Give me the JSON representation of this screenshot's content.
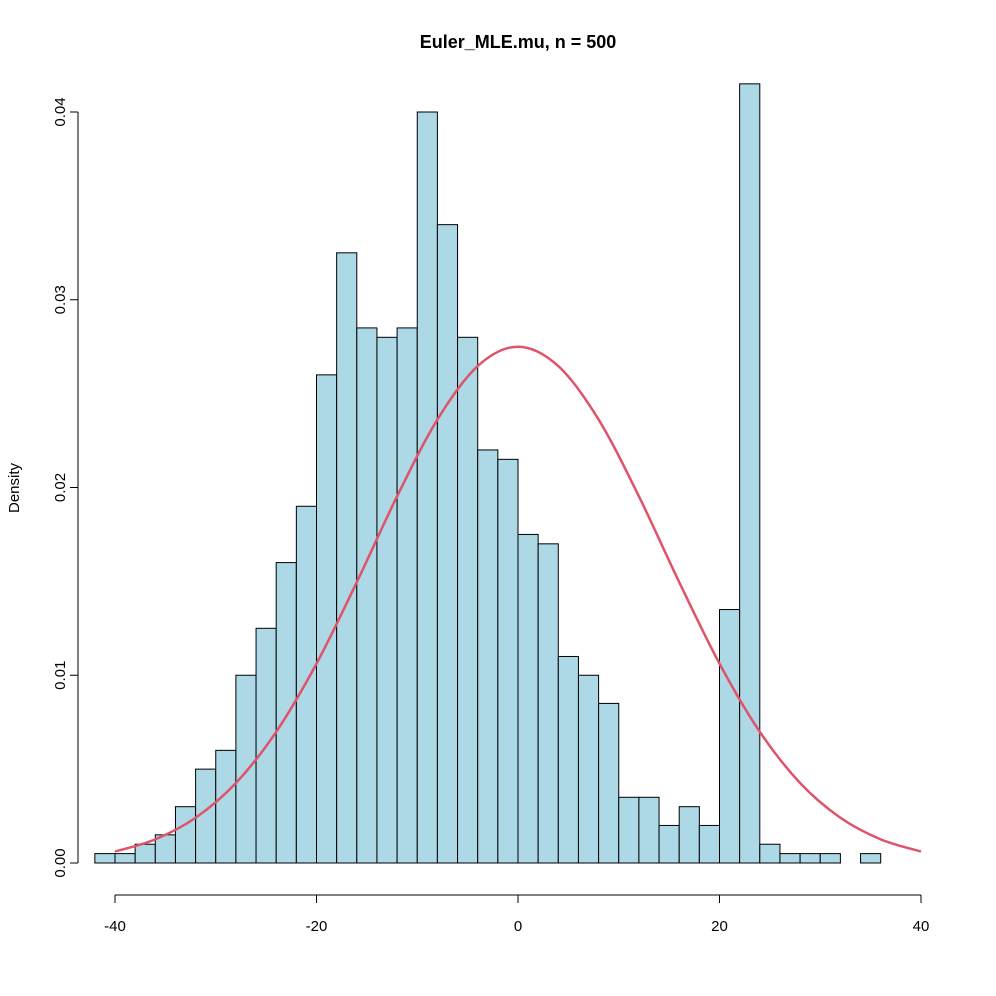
{
  "chart_data": {
    "type": "histogram",
    "title": "Euler_MLE.mu, n = 500",
    "y_label": "Density",
    "bins": [
      -42,
      -40,
      -38,
      -36,
      -34,
      -32,
      -30,
      -28,
      -26,
      -24,
      -22,
      -20,
      -18,
      -16,
      -14,
      -12,
      -10,
      -8,
      -6,
      -4,
      -2,
      0,
      2,
      4,
      6,
      8,
      10,
      12,
      14,
      16,
      18,
      20,
      22,
      24,
      26,
      28,
      30,
      32,
      34,
      36
    ],
    "values": [
      0.0005,
      0.0005,
      0.001,
      0.0015,
      0.003,
      0.005,
      0.006,
      0.01,
      0.0125,
      0.016,
      0.019,
      0.026,
      0.0325,
      0.0285,
      0.028,
      0.0285,
      0.04,
      0.034,
      0.028,
      0.022,
      0.0215,
      0.0175,
      0.017,
      0.011,
      0.01,
      0.0085,
      0.0035,
      0.0035,
      0.002,
      0.003,
      0.002,
      0.0135,
      0.0415,
      0.001,
      0.0005,
      0.0005,
      0.0005,
      0,
      0.0005
    ],
    "color": "#add8e6",
    "edge_color": "#000000",
    "curve": {
      "color": "#df536b",
      "x": [
        -40,
        -36,
        -32,
        -28,
        -24,
        -20,
        -16,
        -12,
        -8,
        -4,
        0,
        4,
        8,
        12,
        16,
        20,
        24,
        28,
        32,
        36,
        40
      ],
      "values": [
        0.00061,
        0.00126,
        0.00241,
        0.00426,
        0.00699,
        0.01062,
        0.01496,
        0.01953,
        0.02362,
        0.02647,
        0.0275,
        0.02647,
        0.02362,
        0.01953,
        0.01496,
        0.01062,
        0.00699,
        0.00426,
        0.00241,
        0.00126,
        0.00061
      ]
    },
    "xlim": [
      -40,
      40
    ],
    "xticks": [
      -40,
      -20,
      0,
      20,
      40
    ],
    "ylim": [
      0,
      0.04
    ],
    "yticks": [
      {
        "value": 0,
        "label": "0.00"
      },
      0.01,
      0.02,
      0.03,
      0.04
    ]
  }
}
